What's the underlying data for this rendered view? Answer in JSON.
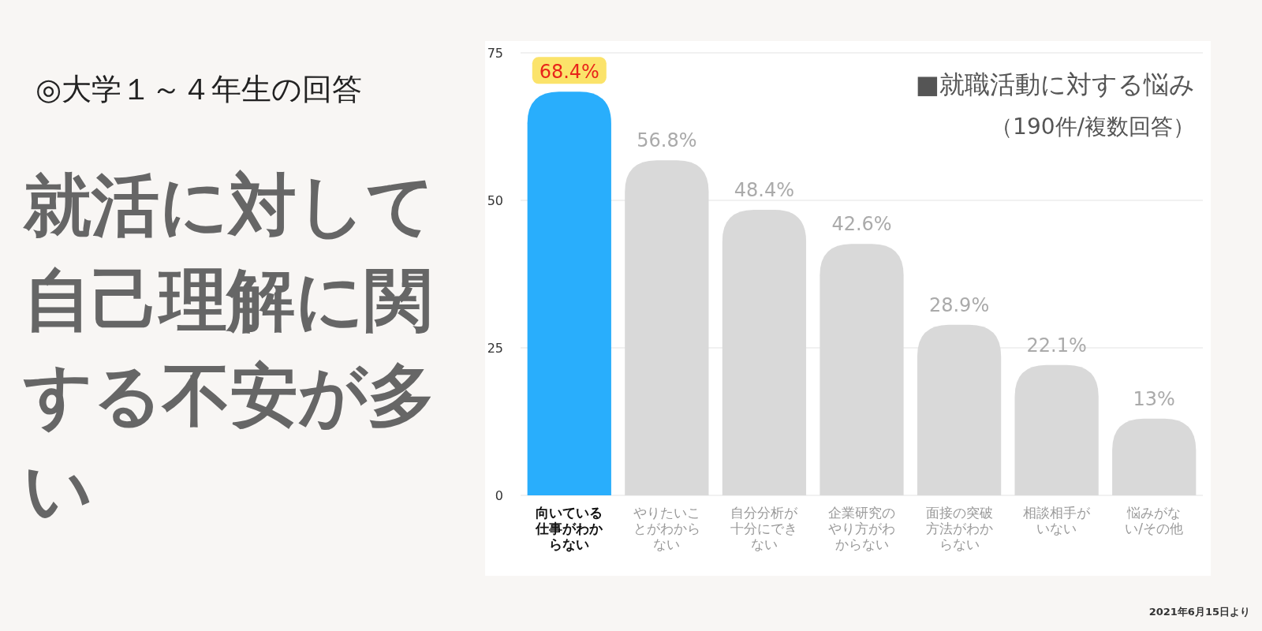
{
  "chart_data": {
    "type": "bar",
    "title": "就活に対して自己理解に関する不安が多い",
    "subtitle": "◎大学１～４年生の回答",
    "annotations": [
      "■就職活動に対する悩み",
      "（190件/複数回答）",
      "2021年6月15日より"
    ],
    "categories": [
      "向いている仕事がわからない",
      "やりたいことがわからない",
      "自分分析が十分にできない",
      "企業研究のやり方がわからない",
      "面接の突破方法がわからない",
      "相談相手がいない",
      "悩みがない/その他"
    ],
    "values": [
      68.4,
      56.8,
      48.4,
      42.6,
      28.9,
      22.1,
      13
    ],
    "colors": [
      "#29aefc",
      "#d9d9d9",
      "#d9d9d9",
      "#d9d9d9",
      "#d9d9d9",
      "#d9d9d9",
      "#d9d9d9"
    ],
    "value_labels": [
      "68.4%",
      "56.8%",
      "48.4%",
      "42.6%",
      "28.9%",
      "22.1%",
      "13%"
    ],
    "ylim": [
      0,
      75
    ],
    "yticks": [
      0,
      25,
      50,
      75
    ],
    "grid": "y"
  }
}
